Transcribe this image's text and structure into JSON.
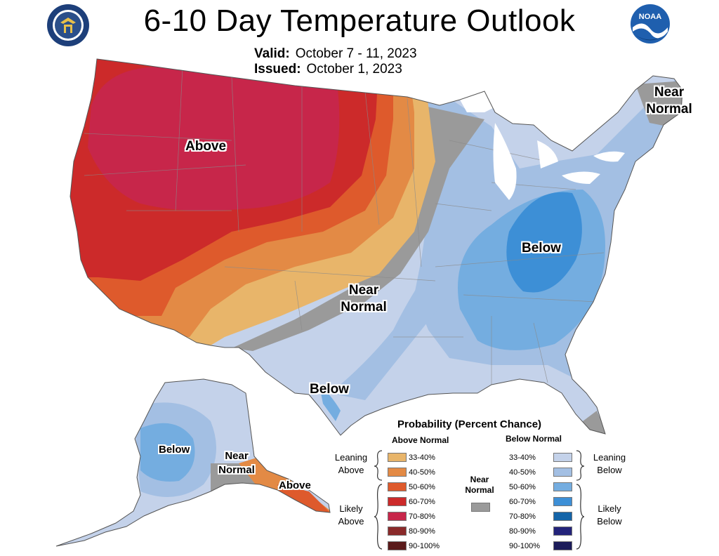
{
  "header": {
    "title": "6-10 Day Temperature Outlook",
    "valid_label": "Valid:",
    "valid_value": "October 7 - 11, 2023",
    "issued_label": "Issued:",
    "issued_value": "October 1, 2023"
  },
  "logos": {
    "doc_seal": "department-of-commerce-seal",
    "noaa": "NOAA"
  },
  "map_labels": {
    "conus_above": "Above",
    "conus_near": "Near Normal",
    "conus_below_se": "Below",
    "conus_below_tx": "Below",
    "maine_near": "Near Normal",
    "ak_below": "Below",
    "ak_near": "Near Normal",
    "ak_above": "Above"
  },
  "legend": {
    "title": "Probability (Percent Chance)",
    "above_head": "Above Normal",
    "below_head": "Below Normal",
    "near_head": "Near Normal",
    "leaning_above": "Leaning Above",
    "likely_above": "Likely Above",
    "leaning_below": "Leaning Below",
    "likely_below": "Likely Below",
    "above": [
      {
        "range": "33-40%",
        "color": "#e8b56a"
      },
      {
        "range": "40-50%",
        "color": "#e38a45"
      },
      {
        "range": "50-60%",
        "color": "#de5a2c"
      },
      {
        "range": "60-70%",
        "color": "#cc2a2a"
      },
      {
        "range": "70-80%",
        "color": "#c7264a"
      },
      {
        "range": "80-90%",
        "color": "#8a2a2a"
      },
      {
        "range": "90-100%",
        "color": "#5a1a1a"
      }
    ],
    "below": [
      {
        "range": "33-40%",
        "color": "#c4d2ea"
      },
      {
        "range": "40-50%",
        "color": "#a3bfe3"
      },
      {
        "range": "50-60%",
        "color": "#74ade0"
      },
      {
        "range": "60-70%",
        "color": "#3d8fd6"
      },
      {
        "range": "70-80%",
        "color": "#1464a8"
      },
      {
        "range": "80-90%",
        "color": "#23237a"
      },
      {
        "range": "90-100%",
        "color": "#1c1c5a"
      }
    ],
    "near_color": "#9a9a9a"
  }
}
